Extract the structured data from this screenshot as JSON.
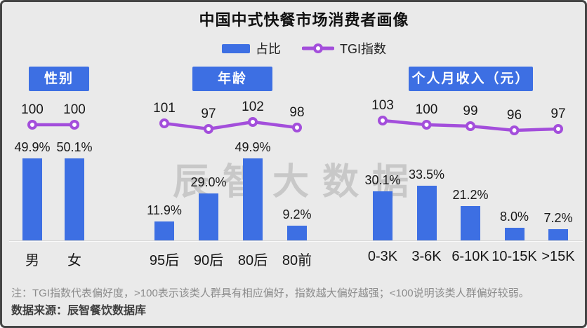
{
  "title": "中国中式快餐市场消费者画像",
  "watermark": "辰智大数据",
  "footnote": "注：TGI指数代表偏好度，>100表示该类人群具有相应偏好，指数越大偏好越强；<100说明该类人群偏好较弱。",
  "source": "数据来源：辰智餐饮数据库",
  "colors": {
    "bar": "#3D6FE3",
    "line": "#A34EDB",
    "background": "#EAEAEA",
    "header_text": "#FFFFFF"
  },
  "chart_data": {
    "type": "bar",
    "subtype": "grouped bar + TGI line combo",
    "legend": {
      "bar": "占比",
      "line": "TGI指数"
    },
    "value_unit": "%",
    "tgi_reference": 100,
    "groups": [
      {
        "header": "性别",
        "categories": [
          "男",
          "女"
        ],
        "share_pct": [
          49.9,
          50.1
        ],
        "tgi": [
          100,
          100
        ]
      },
      {
        "header": "年龄",
        "categories": [
          "95后",
          "90后",
          "80后",
          "80前"
        ],
        "share_pct": [
          11.9,
          29.0,
          49.9,
          9.2
        ],
        "tgi": [
          101,
          97,
          102,
          98
        ]
      },
      {
        "header": "个人月收入（元）",
        "categories": [
          "0-3K",
          "3-6K",
          "6-10K",
          "10-15K",
          ">15K"
        ],
        "share_pct": [
          30.1,
          33.5,
          21.2,
          8.0,
          7.2
        ],
        "tgi": [
          103,
          100,
          99,
          96,
          97
        ]
      }
    ]
  }
}
